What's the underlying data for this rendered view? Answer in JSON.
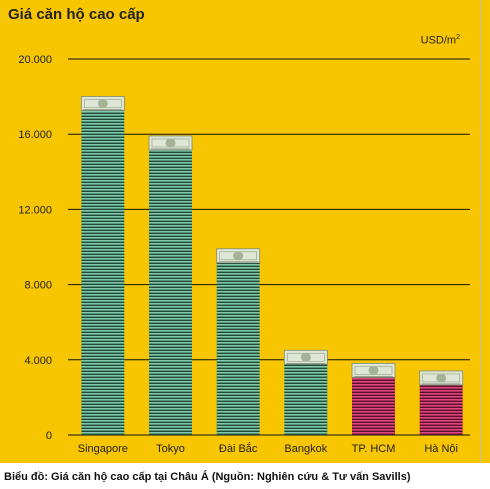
{
  "chart_data": {
    "type": "bar",
    "title": "Giá căn hộ cao cấp",
    "unit": "USD/m",
    "unit_superscript": "2",
    "categories": [
      "Singapore",
      "Tokyo",
      "Đài Bắc",
      "Bangkok",
      "TP. HCM",
      "Hà Nội"
    ],
    "values": [
      17900,
      15800,
      9800,
      4400,
      3700,
      3300
    ],
    "ylim": [
      0,
      20000
    ],
    "yticks": [
      0,
      4000,
      8000,
      12000,
      16000,
      20000
    ],
    "ytick_labels": [
      "0",
      "4.000",
      "8.000",
      "12.000",
      "16.000",
      "20.000"
    ],
    "grid": true,
    "bar_colors": [
      "#1f4a3a",
      "#1f4a3a",
      "#1f4a3a",
      "#1f4a3a",
      "#5a1030",
      "#5a1030"
    ],
    "stripe_colors": [
      "#7fc8a9",
      "#7fc8a9",
      "#7fc8a9",
      "#7fc8a9",
      "#e0467a",
      "#e0467a"
    ],
    "background": "#f7c600",
    "banknote_icon": "dollar-bill"
  },
  "caption": "Biểu đồ: Giá căn hộ cao cấp tại Châu Á (Nguồn: Nghiên cứu & Tư vấn Savills)"
}
